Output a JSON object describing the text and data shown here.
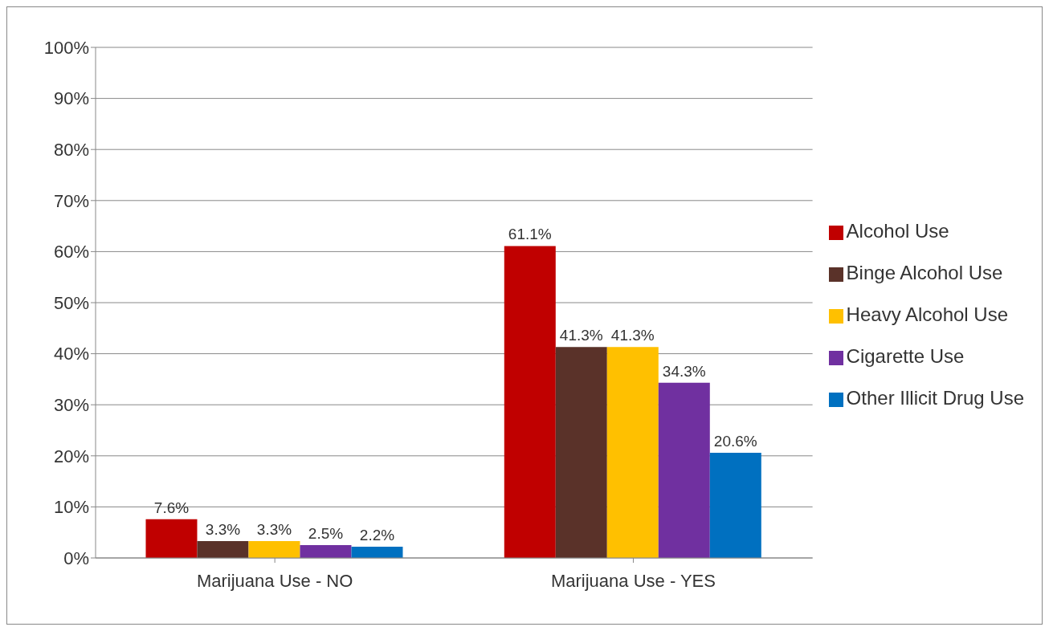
{
  "chart_data": {
    "type": "bar",
    "categories": [
      "Marijuana Use - NO",
      "Marijuana Use - YES"
    ],
    "series": [
      {
        "name": "Alcohol Use",
        "color": "#c00000",
        "values": [
          7.6,
          61.1
        ],
        "value_labels": [
          "7.6%",
          "61.1%"
        ]
      },
      {
        "name": "Binge Alcohol Use",
        "color": "#5a3229",
        "values": [
          3.3,
          41.3
        ],
        "value_labels": [
          "3.3%",
          "41.3%"
        ]
      },
      {
        "name": "Heavy Alcohol Use",
        "color": "#ffc000",
        "values": [
          3.3,
          41.3
        ],
        "value_labels": [
          "3.3%",
          "41.3%"
        ]
      },
      {
        "name": "Cigarette Use",
        "color": "#7030a0",
        "values": [
          2.5,
          34.3
        ],
        "value_labels": [
          "2.5%",
          "34.3%"
        ]
      },
      {
        "name": "Other Illicit Drug Use",
        "color": "#0070c0",
        "values": [
          2.2,
          20.6
        ],
        "value_labels": [
          "2.2%",
          "20.6%"
        ]
      }
    ],
    "ylim": [
      0,
      100
    ],
    "yticks": [
      {
        "value": 0,
        "label": "0%"
      },
      {
        "value": 10,
        "label": "10%"
      },
      {
        "value": 20,
        "label": "20%"
      },
      {
        "value": 30,
        "label": "30%"
      },
      {
        "value": 40,
        "label": "40%"
      },
      {
        "value": 50,
        "label": "50%"
      },
      {
        "value": 60,
        "label": "60%"
      },
      {
        "value": 70,
        "label": "70%"
      },
      {
        "value": 80,
        "label": "80%"
      },
      {
        "value": 90,
        "label": "90%"
      },
      {
        "value": 100,
        "label": "100%"
      }
    ],
    "grid": "y",
    "legend": "right"
  }
}
